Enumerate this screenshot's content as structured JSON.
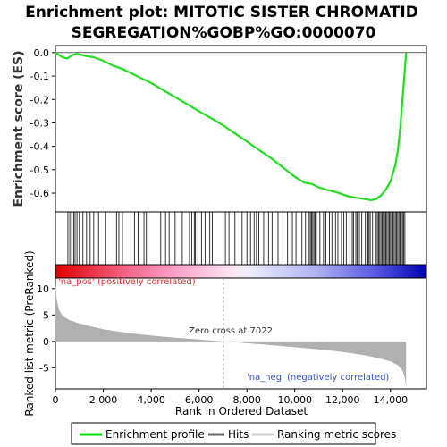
{
  "chart_data": {
    "type": "line",
    "title_line1": "Enrichment plot: MITOTIC SISTER CHROMATID",
    "title_line2": "SEGREGATION%GOBP%GO:0000070",
    "es_ylabel": "Enrichment score (ES)",
    "metric_ylabel": "Ranked list metric (PreRanked)",
    "xlabel": "Rank in Ordered Dataset",
    "xlim": [
      0,
      15500
    ],
    "es_ylim": [
      -0.68,
      0.03
    ],
    "metric_ylim": [
      -9,
      12
    ],
    "x_ticks": [
      0,
      2000,
      4000,
      6000,
      8000,
      10000,
      12000,
      14000
    ],
    "x_tick_labels": [
      "0",
      "2,000",
      "4,000",
      "6,000",
      "8,000",
      "10,000",
      "12,000",
      "14,000"
    ],
    "es_ticks": [
      0.0,
      -0.1,
      -0.2,
      -0.3,
      -0.4,
      -0.5,
      -0.6
    ],
    "es_tick_labels": [
      "0.0",
      "-0.1",
      "-0.2",
      "-0.3",
      "-0.4",
      "-0.5",
      "-0.6"
    ],
    "metric_ticks": [
      10,
      5,
      0,
      -5
    ],
    "metric_tick_labels": [
      "10",
      "5",
      "0",
      "-5"
    ],
    "zero_cross_label": "Zero cross at 7022",
    "zero_cross": 7022,
    "pos_label": "'na_pos' (positively correlated)",
    "neg_label": "'na_neg' (negatively correlated)",
    "n_genes": 14650,
    "es_curve": {
      "x": [
        0,
        300,
        500,
        700,
        900,
        1100,
        1300,
        1600,
        2000,
        2400,
        2800,
        3200,
        3600,
        4000,
        4500,
        5000,
        5500,
        6000,
        6500,
        7000,
        7500,
        8000,
        8500,
        9000,
        9500,
        10000,
        10400,
        10700,
        11000,
        11300,
        11700,
        12000,
        12300,
        12600,
        12900,
        13200,
        13400,
        13600,
        13800,
        14000,
        14200,
        14300,
        14400,
        14500,
        14600,
        14650
      ],
      "y": [
        0.0,
        -0.02,
        -0.025,
        -0.01,
        -0.005,
        -0.01,
        -0.015,
        -0.02,
        -0.035,
        -0.055,
        -0.07,
        -0.09,
        -0.11,
        -0.13,
        -0.16,
        -0.19,
        -0.22,
        -0.25,
        -0.28,
        -0.31,
        -0.345,
        -0.38,
        -0.415,
        -0.45,
        -0.49,
        -0.53,
        -0.555,
        -0.56,
        -0.575,
        -0.585,
        -0.595,
        -0.605,
        -0.615,
        -0.62,
        -0.625,
        -0.63,
        -0.625,
        -0.61,
        -0.585,
        -0.55,
        -0.48,
        -0.42,
        -0.33,
        -0.2,
        -0.07,
        0.0
      ]
    },
    "hits": [
      520,
      600,
      680,
      760,
      820,
      900,
      1000,
      1150,
      1300,
      1450,
      1600,
      1800,
      2100,
      2450,
      2550,
      2650,
      2800,
      3300,
      3450,
      3700,
      3800,
      4400,
      4600,
      4750,
      5000,
      5300,
      5600,
      5700,
      5800,
      5850,
      5950,
      6100,
      6250,
      6450,
      6550,
      7100,
      7250,
      7500,
      7800,
      8000,
      8150,
      8300,
      8400,
      8500,
      8700,
      8900,
      9050,
      9300,
      9500,
      9700,
      9900,
      10050,
      10300,
      10450,
      10550,
      10600,
      10650,
      10700,
      10750,
      10800,
      10850,
      10900,
      11050,
      11200,
      11300,
      11450,
      11550,
      11600,
      11700,
      11800,
      11950,
      12050,
      12150,
      12300,
      12400,
      12450,
      12550,
      12600,
      12700,
      12800,
      12950,
      13050,
      13100,
      13150,
      13250,
      13350,
      13400,
      13450,
      13500,
      13550,
      13600,
      13650,
      13700,
      13750,
      13800,
      13850,
      13900,
      13950,
      14000,
      14050,
      14100,
      14150,
      14200,
      14250,
      14300,
      14350,
      14400,
      14450,
      14500,
      14550,
      14600
    ],
    "metric_curve": {
      "x": [
        0,
        50,
        150,
        300,
        600,
        1000,
        1500,
        2000,
        3000,
        4000,
        5000,
        6000,
        7022,
        8000,
        9000,
        10000,
        11000,
        12000,
        13000,
        13500,
        14000,
        14300,
        14500,
        14600,
        14650
      ],
      "y": [
        11.0,
        8.0,
        6.0,
        4.8,
        4.0,
        3.4,
        2.8,
        2.3,
        1.6,
        1.1,
        0.7,
        0.35,
        0.0,
        -0.35,
        -0.7,
        -1.1,
        -1.5,
        -2.0,
        -2.7,
        -3.2,
        -3.8,
        -4.5,
        -5.5,
        -7.0,
        -8.5
      ]
    },
    "legend": {
      "items": [
        {
          "label": "Enrichment profile",
          "color": "#00e000"
        },
        {
          "label": "Hits",
          "color": "#666666"
        },
        {
          "label": "Ranking metric scores",
          "color": "#cccccc"
        }
      ]
    }
  }
}
